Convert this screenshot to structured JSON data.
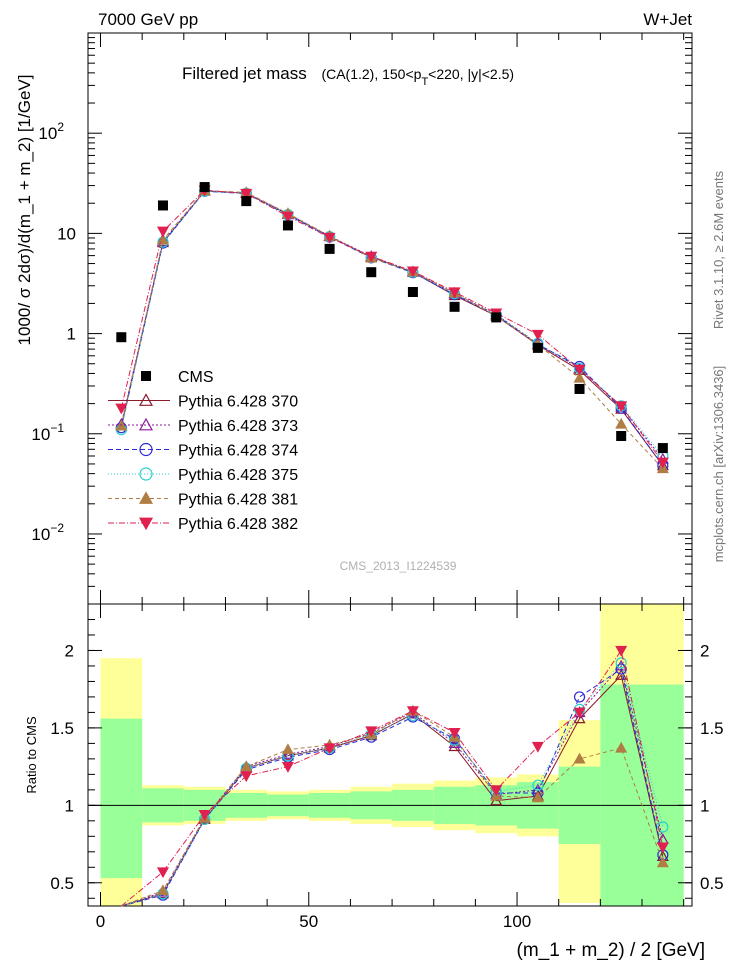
{
  "header": {
    "left": "7000 GeV pp",
    "right": "W+Jet"
  },
  "top_title": {
    "main": "Filtered jet mass",
    "sub_a": "(CA(1.2), 150<p",
    "sub_t": "T",
    "sub_b": "<220, |y|<2.5)"
  },
  "side": {
    "rivet": "Rivet 3.1.10, ≥ 2.6M events",
    "mcplots": "mcplots.cern.ch [arXiv:1306.3436]"
  },
  "watermark": "CMS_2013_I1224539",
  "main_ylabel": "1000/ σ 2dσ)/d(m_1 + m_2) [1/GeV]",
  "main_yticks": [
    {
      "v": 100,
      "base": "10",
      "exp": "2"
    },
    {
      "v": 10,
      "base": "10",
      "exp": ""
    },
    {
      "v": 1,
      "base": "1",
      "exp": ""
    },
    {
      "v": 0.1,
      "base": "10",
      "exp": "−1"
    },
    {
      "v": 0.01,
      "base": "10",
      "exp": "−2"
    }
  ],
  "ratio_ylabel": "Ratio to CMS",
  "ratio_yticks": [
    "2",
    "1.5",
    "1",
    "0.5"
  ],
  "xlabel": "(m_1 + m_2) / 2 [GeV]",
  "xticks": [
    "0",
    "50",
    "100"
  ],
  "colors": {
    "green": "#99ff99",
    "yellow": "#ffff99",
    "data": "#000000",
    "s370": "#8b1a2b",
    "s373": "#8b1a9b",
    "s374": "#2b2bd6",
    "s375": "#2bcfcf",
    "s381": "#b07d45",
    "s382": "#e0204f"
  },
  "chart_data": {
    "type": "scatter",
    "log_y": true,
    "xlim": [
      -3,
      142
    ],
    "ylim": [
      0.002,
      1000
    ],
    "ratio_ylim": [
      0.35,
      2.3
    ],
    "bins": [
      [
        0,
        10
      ],
      [
        10,
        20
      ],
      [
        20,
        30
      ],
      [
        30,
        40
      ],
      [
        40,
        50
      ],
      [
        50,
        60
      ],
      [
        60,
        70
      ],
      [
        70,
        80
      ],
      [
        80,
        90
      ],
      [
        90,
        100
      ],
      [
        100,
        110
      ],
      [
        110,
        120
      ],
      [
        120,
        130
      ],
      [
        130,
        140
      ]
    ],
    "x": [
      5,
      15,
      25,
      35,
      45,
      55,
      65,
      75,
      85,
      95,
      105,
      115,
      125,
      135
    ],
    "data": {
      "name": "CMS",
      "values": [
        0.92,
        19,
        29,
        21,
        12,
        7,
        4.1,
        2.6,
        1.85,
        1.45,
        0.72,
        0.28,
        0.095,
        0.072
      ]
    },
    "band_green": [
      [
        0.53,
        1.56
      ],
      [
        0.89,
        1.11
      ],
      [
        0.9,
        1.1
      ],
      [
        0.92,
        1.08
      ],
      [
        0.93,
        1.07
      ],
      [
        0.92,
        1.08
      ],
      [
        0.91,
        1.09
      ],
      [
        0.9,
        1.1
      ],
      [
        0.88,
        1.12
      ],
      [
        0.87,
        1.13
      ],
      [
        0.85,
        1.15
      ],
      [
        0.75,
        1.25
      ],
      [
        0.35,
        1.78
      ],
      [
        0.35,
        1.78
      ]
    ],
    "band_yellow": [
      [
        0.35,
        1.95
      ],
      [
        0.87,
        1.13
      ],
      [
        0.88,
        1.12
      ],
      [
        0.9,
        1.1
      ],
      [
        0.91,
        1.09
      ],
      [
        0.9,
        1.1
      ],
      [
        0.88,
        1.12
      ],
      [
        0.86,
        1.14
      ],
      [
        0.84,
        1.16
      ],
      [
        0.82,
        1.18
      ],
      [
        0.8,
        1.2
      ],
      [
        0.37,
        1.55
      ],
      [
        0.35,
        2.3
      ],
      [
        0.35,
        2.3
      ]
    ],
    "series": [
      {
        "name": "Pythia 6.428 370",
        "key": "s370",
        "marker": "tri-up-open",
        "dash": "",
        "values": [
          0.12,
          8.1,
          26.5,
          25.2,
          15.5,
          9.3,
          5.8,
          4.1,
          2.4,
          1.5,
          0.77,
          0.43,
          0.176,
          0.048
        ],
        "ratio": [
          0.12,
          0.43,
          0.91,
          1.24,
          1.32,
          1.37,
          1.45,
          1.59,
          1.38,
          1.03,
          1.06,
          1.56,
          1.84,
          0.67
        ]
      },
      {
        "name": "Pythia 6.428 373",
        "key": "s373",
        "marker": "tri-up-open",
        "dash": "2,2",
        "values": [
          0.125,
          8.3,
          26.6,
          25.3,
          15.7,
          9.4,
          5.9,
          4.15,
          2.5,
          1.55,
          0.79,
          0.45,
          0.185,
          0.056
        ],
        "ratio": [
          0.13,
          0.44,
          0.92,
          1.25,
          1.33,
          1.38,
          1.47,
          1.6,
          1.4,
          1.07,
          1.1,
          1.6,
          1.9,
          0.78
        ]
      },
      {
        "name": "Pythia 6.428 374",
        "key": "s374",
        "marker": "circle-open",
        "dash": "5,3",
        "values": [
          0.115,
          8.0,
          26.3,
          25.0,
          15.3,
          9.2,
          5.7,
          4.05,
          2.45,
          1.52,
          0.78,
          0.47,
          0.18,
          0.048
        ],
        "ratio": [
          0.12,
          0.42,
          0.91,
          1.23,
          1.31,
          1.36,
          1.44,
          1.57,
          1.43,
          1.08,
          1.08,
          1.7,
          1.88,
          0.68
        ]
      },
      {
        "name": "Pythia 6.428 375",
        "key": "s375",
        "marker": "circle-open",
        "dash": "1,2",
        "values": [
          0.11,
          8.2,
          26.4,
          25.1,
          15.4,
          9.3,
          5.75,
          4.1,
          2.5,
          1.55,
          0.8,
          0.45,
          0.19,
          0.06
        ],
        "ratio": [
          0.12,
          0.43,
          0.91,
          1.24,
          1.32,
          1.37,
          1.46,
          1.58,
          1.42,
          1.09,
          1.13,
          1.62,
          1.92,
          0.86
        ]
      },
      {
        "name": "Pythia 6.428 381",
        "key": "s381",
        "marker": "tri-up-filled",
        "dash": "4,3",
        "values": [
          0.12,
          8.6,
          26.8,
          25.6,
          15.8,
          9.4,
          5.7,
          4.15,
          2.55,
          1.5,
          0.78,
          0.36,
          0.125,
          0.045
        ],
        "ratio": [
          0.13,
          0.45,
          0.92,
          1.25,
          1.36,
          1.39,
          1.46,
          1.61,
          1.44,
          1.06,
          1.05,
          1.3,
          1.37,
          0.63
        ]
      },
      {
        "name": "Pythia 6.428 382",
        "key": "s382",
        "marker": "tri-down-filled",
        "dash": "6,2,1,2",
        "values": [
          0.18,
          10.5,
          27.0,
          25.0,
          14.8,
          9.1,
          5.9,
          4.2,
          2.6,
          1.6,
          0.98,
          0.44,
          0.19,
          0.052
        ],
        "ratio": [
          0.19,
          0.57,
          0.94,
          1.19,
          1.25,
          1.37,
          1.48,
          1.61,
          1.47,
          1.1,
          1.38,
          1.6,
          2.0,
          0.73
        ]
      }
    ]
  }
}
